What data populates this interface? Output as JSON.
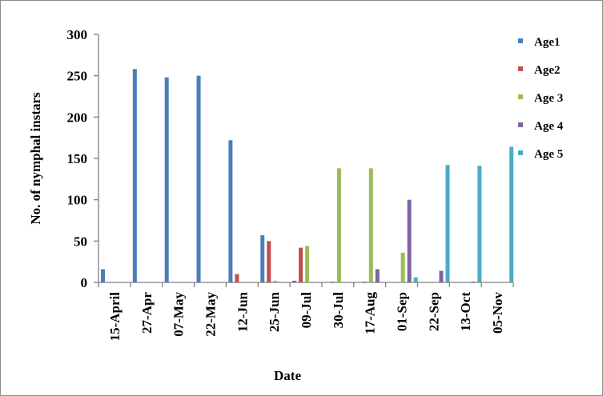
{
  "chart_data": {
    "type": "bar",
    "title": "",
    "xlabel": "Date",
    "ylabel": "No. of nymphal instars",
    "ylim": [
      0,
      300
    ],
    "yticks": [
      0,
      50,
      100,
      150,
      200,
      250,
      300
    ],
    "grid": false,
    "legend_position": "right",
    "categories": [
      "15-April",
      "27-Apr",
      "07-May",
      "22-May",
      "12-Jun",
      "25-Jun",
      "09-Jul",
      "30-Jul",
      "17-Aug",
      "01-Sep",
      "22-Sep",
      "13-Oct",
      "05-Nov"
    ],
    "series": [
      {
        "name": "Age1",
        "color": "#4a7ebb",
        "values": [
          16,
          258,
          248,
          250,
          172,
          57,
          2,
          0,
          0,
          0,
          0,
          0,
          0
        ]
      },
      {
        "name": "Age2",
        "color": "#c0504d",
        "values": [
          0,
          0,
          0,
          0,
          10,
          50,
          42,
          1,
          1,
          0,
          0,
          0,
          0
        ]
      },
      {
        "name": "Age 3",
        "color": "#9bbb59",
        "values": [
          0,
          0,
          0,
          0,
          0,
          2,
          44,
          138,
          138,
          36,
          0,
          0,
          0
        ]
      },
      {
        "name": "Age 4",
        "color": "#8064a2",
        "values": [
          0,
          0,
          0,
          0,
          0,
          0,
          0,
          0,
          16,
          100,
          14,
          1,
          0
        ]
      },
      {
        "name": "Age 5",
        "color": "#4bacc6",
        "values": [
          0,
          0,
          0,
          0,
          0,
          0,
          0,
          0,
          0,
          6,
          142,
          141,
          164
        ]
      }
    ]
  }
}
